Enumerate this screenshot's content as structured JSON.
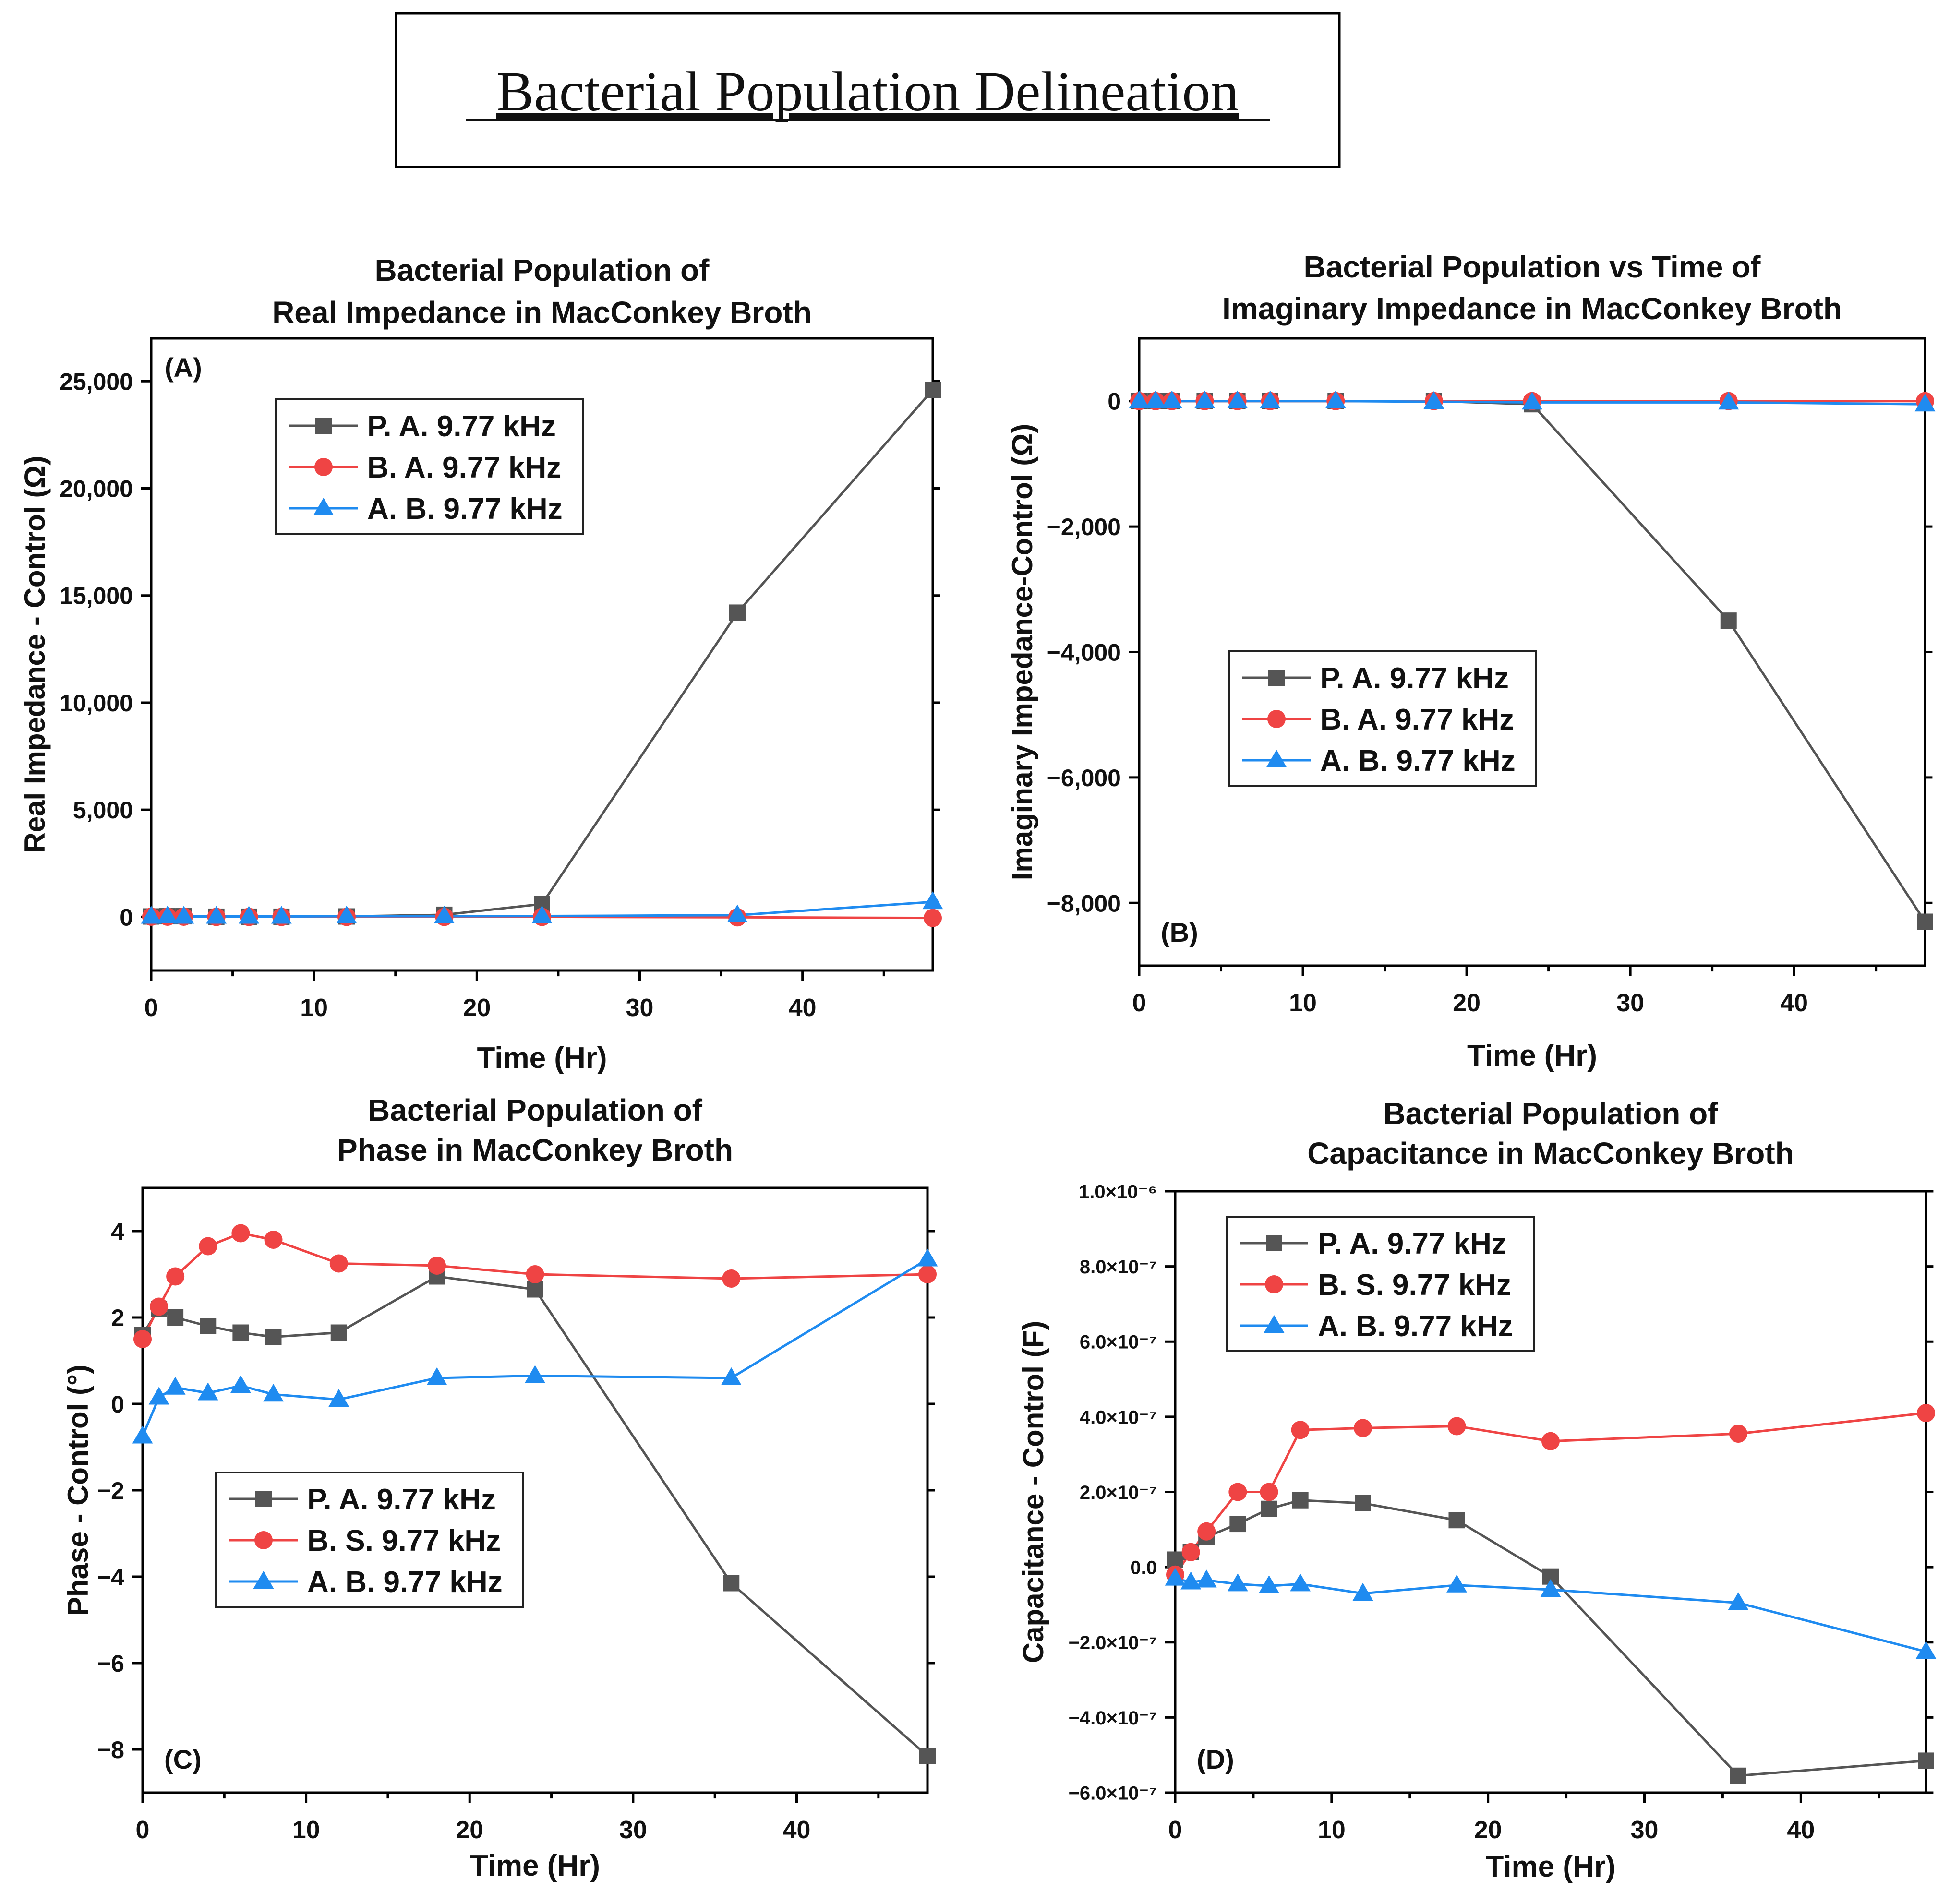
{
  "page": {
    "title": "Bacterial Population Delineation"
  },
  "colors": {
    "pa": "#555555",
    "bs": "#ef4444",
    "ab": "#1f8bf0",
    "axis": "#000000"
  },
  "chart_data": [
    {
      "id": "A",
      "type": "line",
      "title_lines": [
        "Bacterial Population of",
        "Real Impedance in MacConkey Broth"
      ],
      "panel_label": "(A)",
      "panel_label_pos": "top-left",
      "xlabel": "Time (Hr)",
      "ylabel": "Real Impedance - Control (Ω)",
      "xlim": [
        0,
        48
      ],
      "ylim": [
        -2500,
        27000
      ],
      "xticks": [
        0,
        10,
        20,
        30,
        40
      ],
      "xtick_labels": [
        "0",
        "10",
        "20",
        "30",
        "40"
      ],
      "yticks": [
        0,
        5000,
        10000,
        15000,
        20000,
        25000
      ],
      "ytick_labels": [
        "0",
        "5,000",
        "10,000",
        "15,000",
        "20,000",
        "25,000"
      ],
      "legend_position": "top-left",
      "series": [
        {
          "name": "P. A. 9.77 kHz",
          "color_key": "pa",
          "marker": "square",
          "x": [
            0,
            1,
            2,
            4,
            6,
            8,
            12,
            18,
            24,
            36,
            48
          ],
          "y": [
            20,
            30,
            30,
            10,
            10,
            10,
            20,
            100,
            600,
            14200,
            24600
          ]
        },
        {
          "name": "B. A. 9.77 kHz",
          "color_key": "bs",
          "marker": "circle",
          "x": [
            0,
            1,
            2,
            4,
            6,
            8,
            12,
            18,
            24,
            36,
            48
          ],
          "y": [
            10,
            10,
            10,
            0,
            0,
            0,
            0,
            0,
            0,
            -20,
            -50
          ]
        },
        {
          "name": "A. B. 9.77 kHz",
          "color_key": "ab",
          "marker": "triangle",
          "x": [
            0,
            1,
            2,
            4,
            6,
            8,
            12,
            18,
            24,
            36,
            48
          ],
          "y": [
            20,
            30,
            20,
            20,
            20,
            20,
            30,
            30,
            40,
            80,
            700
          ]
        }
      ]
    },
    {
      "id": "B",
      "type": "line",
      "title_lines": [
        "Bacterial Population vs Time of",
        "Imaginary Impedance in MacConkey Broth"
      ],
      "panel_label": "(B)",
      "panel_label_pos": "bottom-left",
      "xlabel": "Time (Hr)",
      "ylabel": "Imaginary Impedance-Control (Ω)",
      "xlim": [
        0,
        48
      ],
      "ylim": [
        -9000,
        1000
      ],
      "xticks": [
        0,
        10,
        20,
        30,
        40
      ],
      "xtick_labels": [
        "0",
        "10",
        "20",
        "30",
        "40"
      ],
      "yticks": [
        0,
        -2000,
        -4000,
        -6000,
        -8000
      ],
      "ytick_labels": [
        "0",
        "−2,000",
        "−4,000",
        "−6,000",
        "−8,000"
      ],
      "legend_position": "middle-left",
      "series": [
        {
          "name": "P. A. 9.77 kHz",
          "color_key": "pa",
          "marker": "square",
          "x": [
            0,
            1,
            2,
            4,
            6,
            8,
            12,
            18,
            24,
            36,
            48
          ],
          "y": [
            0,
            0,
            0,
            0,
            0,
            0,
            0,
            0,
            -50,
            -3500,
            -8300
          ]
        },
        {
          "name": "B. A. 9.77 kHz",
          "color_key": "bs",
          "marker": "circle",
          "x": [
            0,
            1,
            2,
            4,
            6,
            8,
            12,
            18,
            24,
            36,
            48
          ],
          "y": [
            0,
            0,
            0,
            0,
            0,
            0,
            0,
            0,
            0,
            0,
            0
          ]
        },
        {
          "name": "A. B. 9.77 kHz",
          "color_key": "ab",
          "marker": "triangle",
          "x": [
            0,
            1,
            2,
            4,
            6,
            8,
            12,
            18,
            24,
            36,
            48
          ],
          "y": [
            0,
            0,
            0,
            0,
            0,
            0,
            0,
            -10,
            -20,
            -20,
            -50
          ]
        }
      ]
    },
    {
      "id": "C",
      "type": "line",
      "title_lines": [
        "Bacterial Population of",
        "Phase in MacConkey Broth"
      ],
      "panel_label": "(C)",
      "panel_label_pos": "bottom-left",
      "xlabel": "Time (Hr)",
      "ylabel": "Phase - Control (°)",
      "xlim": [
        0,
        48
      ],
      "ylim": [
        -9,
        5
      ],
      "xticks": [
        0,
        10,
        20,
        30,
        40
      ],
      "xtick_labels": [
        "0",
        "10",
        "20",
        "30",
        "40"
      ],
      "yticks": [
        4,
        2,
        0,
        -2,
        -4,
        -6,
        -8
      ],
      "ytick_labels": [
        "4",
        "2",
        "0",
        "−2",
        "−4",
        "−6",
        "−8"
      ],
      "legend_position": "middle-left",
      "series": [
        {
          "name": "P. A. 9.77 kHz",
          "color_key": "pa",
          "marker": "square",
          "x": [
            0,
            1,
            2,
            4,
            6,
            8,
            12,
            18,
            24,
            36,
            48
          ],
          "y": [
            1.6,
            2.2,
            2.0,
            1.8,
            1.65,
            1.55,
            1.65,
            2.95,
            2.65,
            -4.15,
            -8.15
          ]
        },
        {
          "name": "B. S. 9.77 kHz",
          "color_key": "bs",
          "marker": "circle",
          "x": [
            0,
            1,
            2,
            4,
            6,
            8,
            12,
            18,
            24,
            36,
            48
          ],
          "y": [
            1.5,
            2.25,
            2.95,
            3.65,
            3.95,
            3.8,
            3.25,
            3.2,
            3.0,
            2.9,
            3.0
          ]
        },
        {
          "name": "A. B. 9.77 kHz",
          "color_key": "ab",
          "marker": "triangle",
          "x": [
            0,
            1,
            2,
            4,
            6,
            8,
            12,
            18,
            24,
            36,
            48
          ],
          "y": [
            -0.75,
            0.15,
            0.38,
            0.25,
            0.42,
            0.22,
            0.1,
            0.6,
            0.65,
            0.6,
            3.35
          ]
        }
      ]
    },
    {
      "id": "D",
      "type": "line",
      "title_lines": [
        "Bacterial Population of",
        "Capacitance in MacConkey Broth"
      ],
      "panel_label": "(D)",
      "panel_label_pos": "bottom-left",
      "xlabel": "Time (Hr)",
      "ylabel": "Capacitance - Control (F)",
      "xlim": [
        0,
        48
      ],
      "ylim": [
        -6e-07,
        1e-06
      ],
      "xticks": [
        0,
        10,
        20,
        30,
        40
      ],
      "xtick_labels": [
        "0",
        "10",
        "20",
        "30",
        "40"
      ],
      "yticks": [
        1e-06,
        8e-07,
        6e-07,
        4e-07,
        2e-07,
        0,
        -2e-07,
        -4e-07,
        -6e-07
      ],
      "ytick_labels": [
        "1.0×10⁻⁶",
        "8.0×10⁻⁷",
        "6.0×10⁻⁷",
        "4.0×10⁻⁷",
        "2.0×10⁻⁷",
        "0.0",
        "−2.0×10⁻⁷",
        "−4.0×10⁻⁷",
        "−6.0×10⁻⁷"
      ],
      "legend_position": "top-left",
      "series": [
        {
          "name": "P. A. 9.77 kHz",
          "color_key": "pa",
          "marker": "square",
          "x": [
            0,
            1,
            2,
            4,
            6,
            8,
            12,
            18,
            24,
            36,
            48
          ],
          "y": [
            2e-08,
            4e-08,
            8e-08,
            1.15e-07,
            1.55e-07,
            1.78e-07,
            1.7e-07,
            1.25e-07,
            -2.5e-08,
            -5.55e-07,
            -5.15e-07
          ]
        },
        {
          "name": "B. S. 9.77 kHz",
          "color_key": "bs",
          "marker": "circle",
          "x": [
            0,
            1,
            2,
            4,
            6,
            8,
            12,
            18,
            24,
            36,
            48
          ],
          "y": [
            -2e-08,
            4e-08,
            9.5e-08,
            2e-07,
            2e-07,
            3.65e-07,
            3.7e-07,
            3.75e-07,
            3.35e-07,
            3.55e-07,
            4.1e-07
          ]
        },
        {
          "name": "A. B. 9.77 kHz",
          "color_key": "ab",
          "marker": "triangle",
          "x": [
            0,
            1,
            2,
            4,
            6,
            8,
            12,
            18,
            24,
            36,
            48
          ],
          "y": [
            -3e-08,
            -4e-08,
            -3.5e-08,
            -4.5e-08,
            -5e-08,
            -4.5e-08,
            -7e-08,
            -4.8e-08,
            -6e-08,
            -9.5e-08,
            -2.25e-07
          ]
        }
      ]
    }
  ]
}
